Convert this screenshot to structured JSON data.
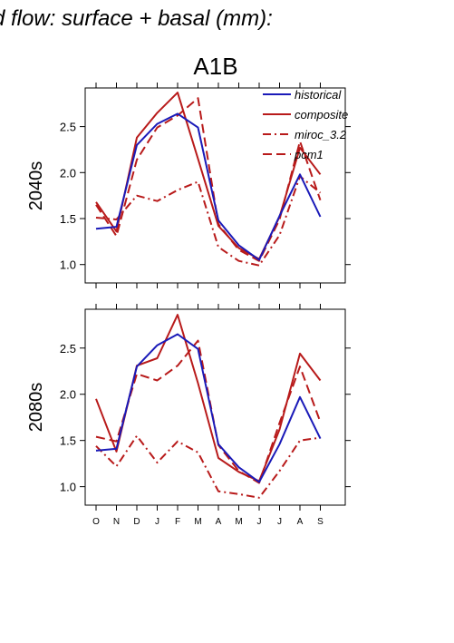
{
  "figure": {
    "title": "d flow: surface + basal (mm):",
    "scenario": "A1B"
  },
  "legend": [
    "historical",
    "composite",
    "miroc_3.2",
    "pcm1"
  ],
  "months": [
    "O",
    "N",
    "D",
    "J",
    "F",
    "M",
    "A",
    "M",
    "J",
    "J",
    "A",
    "S"
  ],
  "colors": {
    "historical": "#1a1ab8",
    "red": "#b81a1a"
  },
  "chart_data": [
    {
      "type": "line",
      "row_label": "2040s",
      "categories": [
        "O",
        "N",
        "D",
        "J",
        "F",
        "M",
        "A",
        "M",
        "J",
        "J",
        "A",
        "S"
      ],
      "yticks": [
        "1.0",
        "1.5",
        "2.0",
        "2.5"
      ],
      "ylim": [
        0.8,
        2.92
      ],
      "legend_position": "top-right",
      "series": [
        {
          "name": "historical",
          "color": "#1a1ab8",
          "dash": "solid",
          "values": [
            1.39,
            1.41,
            2.3,
            2.53,
            2.64,
            2.49,
            1.48,
            1.21,
            1.05,
            1.53,
            1.98,
            1.52
          ]
        },
        {
          "name": "composite",
          "color": "#b81a1a",
          "dash": "solid",
          "values": [
            1.68,
            1.36,
            2.38,
            2.65,
            2.87,
            2.15,
            1.42,
            1.18,
            1.06,
            1.52,
            2.27,
            1.98
          ]
        },
        {
          "name": "miroc_3.2",
          "color": "#b81a1a",
          "dash": "dashdot",
          "values": [
            1.51,
            1.49,
            1.75,
            1.69,
            1.81,
            1.9,
            1.19,
            1.04,
            0.99,
            1.32,
            1.96,
            1.78
          ]
        },
        {
          "name": "pcm1",
          "color": "#b81a1a",
          "dash": "dashed",
          "values": [
            1.65,
            1.31,
            2.14,
            2.49,
            2.62,
            2.81,
            1.44,
            1.16,
            1.04,
            1.49,
            2.34,
            1.7
          ]
        }
      ]
    },
    {
      "type": "line",
      "row_label": "2080s",
      "categories": [
        "O",
        "N",
        "D",
        "J",
        "F",
        "M",
        "A",
        "M",
        "J",
        "J",
        "A",
        "S"
      ],
      "yticks": [
        "1.0",
        "1.5",
        "2.0",
        "2.5"
      ],
      "ylim": [
        0.8,
        2.92
      ],
      "series": [
        {
          "name": "historical",
          "color": "#1a1ab8",
          "dash": "solid",
          "values": [
            1.39,
            1.41,
            2.3,
            2.53,
            2.65,
            2.49,
            1.46,
            1.21,
            1.05,
            1.46,
            1.97,
            1.52
          ]
        },
        {
          "name": "composite",
          "color": "#b81a1a",
          "dash": "solid",
          "values": [
            1.95,
            1.38,
            2.31,
            2.39,
            2.86,
            2.12,
            1.31,
            1.16,
            1.06,
            1.62,
            2.44,
            2.15
          ]
        },
        {
          "name": "miroc_3.2",
          "color": "#b81a1a",
          "dash": "dashdot",
          "values": [
            1.44,
            1.22,
            1.55,
            1.26,
            1.49,
            1.37,
            0.95,
            0.92,
            0.88,
            1.17,
            1.5,
            1.53
          ]
        },
        {
          "name": "pcm1",
          "color": "#b81a1a",
          "dash": "dashed",
          "values": [
            1.54,
            1.49,
            2.22,
            2.15,
            2.31,
            2.58,
            1.45,
            1.17,
            1.04,
            1.69,
            2.3,
            1.7
          ]
        }
      ]
    }
  ]
}
